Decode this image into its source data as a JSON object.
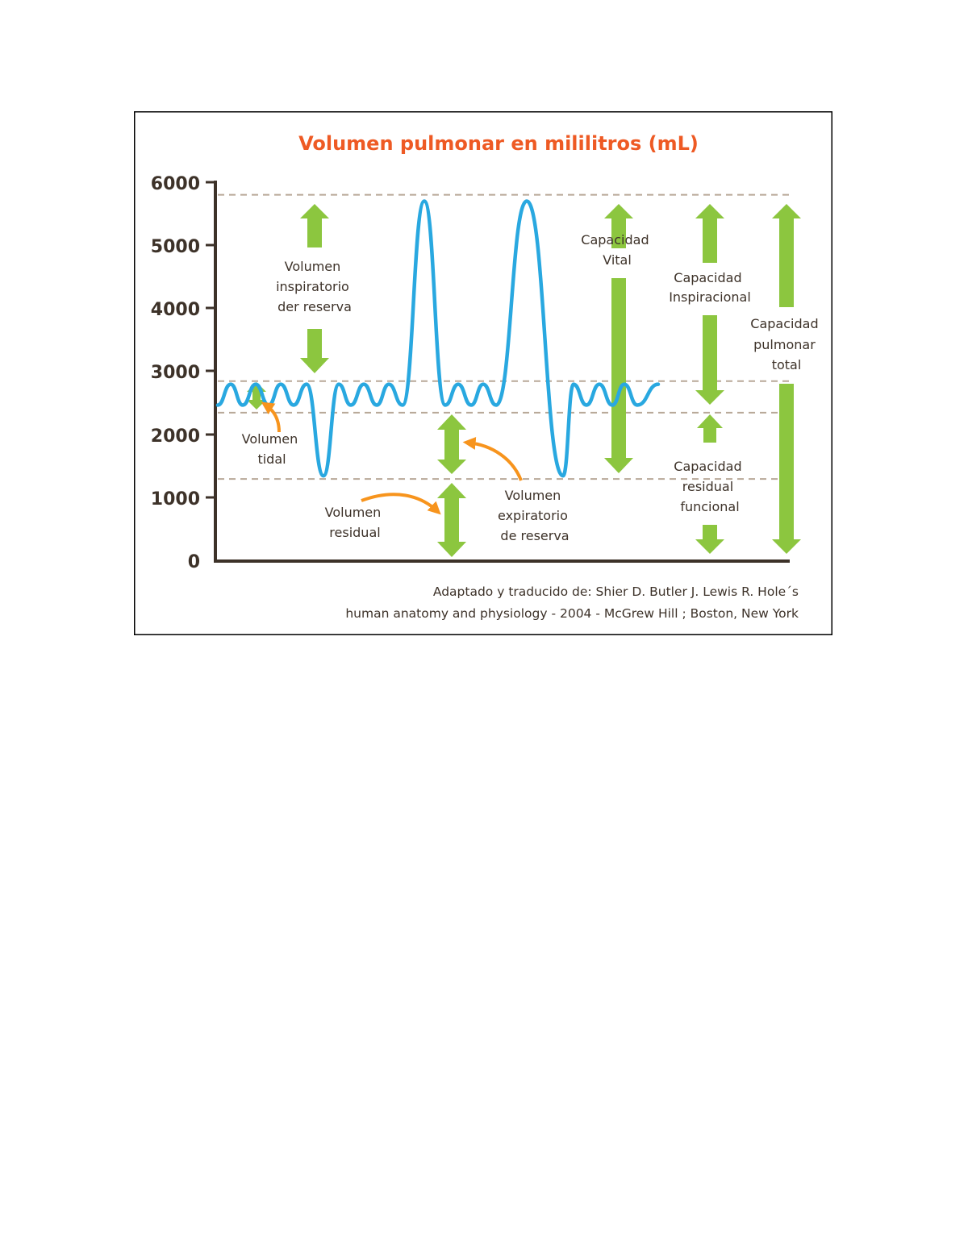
{
  "chart_data": {
    "type": "line",
    "title": "Volumen pulmonar en mililitros (mL)",
    "y_ticks": [
      "6000",
      "5000",
      "4000",
      "3000",
      "2000",
      "1000",
      "0"
    ],
    "ylim": [
      0,
      6000
    ],
    "grid": false,
    "reference_lines": [
      5800,
      2850,
      2350,
      1300
    ],
    "series": [
      {
        "y": [
          2470,
          2800,
          2470,
          2800,
          2470,
          2800,
          2470,
          2800,
          1350,
          2800,
          2470,
          2800,
          2470,
          2800,
          2470,
          5700,
          2470,
          2800,
          2470,
          2800,
          2470,
          5700,
          1350,
          2800,
          2470,
          2800,
          2470,
          2800,
          2470,
          2800
        ]
      }
    ],
    "labels": {
      "vir": [
        "Volumen",
        "inspiratorio",
        "der reserva"
      ],
      "vt": [
        "Volumen",
        "tidal"
      ],
      "vr": [
        "Volumen",
        "residual"
      ],
      "ver": [
        "Volumen",
        "expiratorio",
        "de reserva"
      ],
      "cv": [
        "Capacidad",
        "Vital"
      ],
      "ci": [
        "Capacidad",
        "Inspiracional"
      ],
      "crf": [
        "Capacidad",
        "residual",
        "funcional"
      ],
      "cpt": [
        "Capacidad",
        "pulmonar",
        "total"
      ]
    },
    "credit": [
      "Adaptado y traducido de: Shier D. Butler J. Lewis R. Hole´s",
      "human anatomy and physiology - 2004 - McGrew Hill ; Boston, New York"
    ]
  },
  "colors": {
    "title": "#ee5a24",
    "curve": "#29a8e0",
    "arrow_green": "#8cc63f",
    "arrow_orange": "#f7941d",
    "axis": "#3d3229",
    "reference_line": "#b8a898",
    "border": "#000000"
  }
}
